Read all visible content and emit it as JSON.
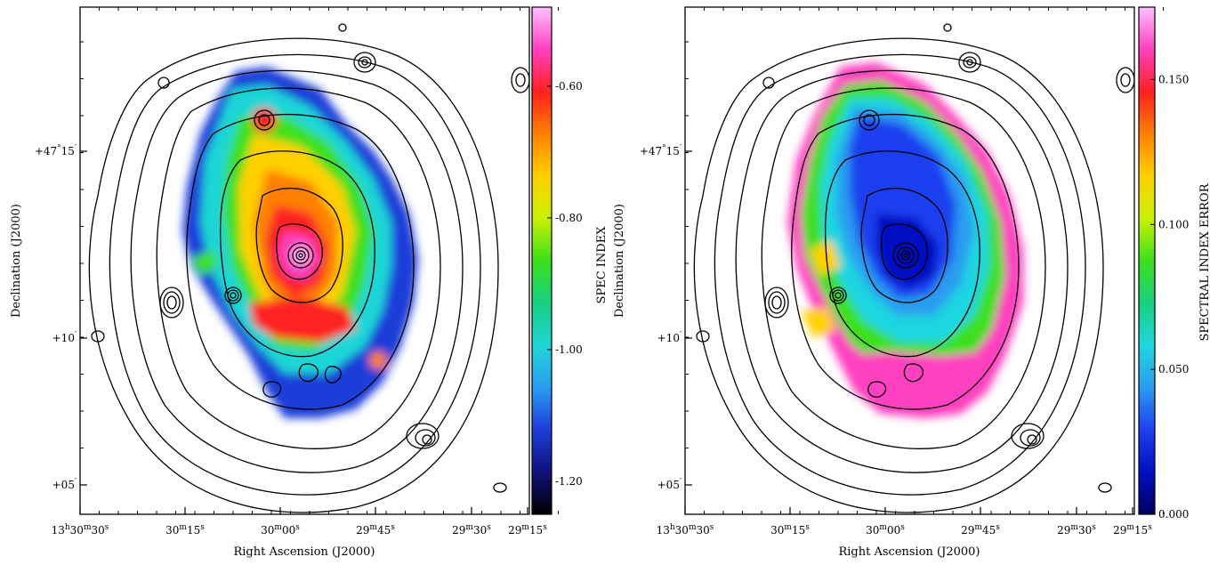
{
  "chart_data": [
    {
      "type": "heatmap",
      "description_free": true,
      "xlabel": "Right Ascension (J2000)",
      "ylabel": "Declination (J2000)",
      "x_ticks": [
        {
          "h": "13",
          "hu": "h",
          "m": "30",
          "mu": "m",
          "s": "30",
          "su": "s"
        },
        {
          "m": "30",
          "mu": "m",
          "s": "15",
          "su": "s"
        },
        {
          "m": "30",
          "mu": "m",
          "s": "00",
          "su": "s"
        },
        {
          "m": "29",
          "mu": "m",
          "s": "45",
          "su": "s"
        },
        {
          "m": "29",
          "mu": "m",
          "s": "30",
          "su": "s"
        },
        {
          "m": "29",
          "mu": "m",
          "s": "15",
          "su": "s"
        }
      ],
      "y_ticks": [
        {
          "deg": "+47",
          "du": "°",
          "min": "15",
          "mu": "′"
        },
        {
          "deg": "+10",
          "du": "",
          "min": "",
          "mu": "′"
        },
        {
          "deg": "+05",
          "du": "",
          "min": "",
          "mu": "′"
        }
      ],
      "colorbar": {
        "label": "SPEC INDEX",
        "ticks": [
          "-0.60",
          "-0.80",
          "-1.00",
          "-1.20"
        ],
        "range": [
          -1.25,
          -0.48
        ],
        "colormap": [
          "#000000",
          "#10107a",
          "#1e3ed8",
          "#2a9cf0",
          "#1fd6d6",
          "#18d080",
          "#3ce01c",
          "#c8f000",
          "#ffd000",
          "#ff8000",
          "#ff2020",
          "#ff40c0",
          "#ffc0ff"
        ]
      },
      "values_range": [
        -1.25,
        -0.55
      ]
    },
    {
      "type": "heatmap",
      "xlabel": "Right Ascension (J2000)",
      "ylabel": "Declination (J2000)",
      "x_ticks": [
        {
          "h": "13",
          "hu": "h",
          "m": "30",
          "mu": "m",
          "s": "30",
          "su": "s"
        },
        {
          "m": "30",
          "mu": "m",
          "s": "15",
          "su": "s"
        },
        {
          "m": "30",
          "mu": "m",
          "s": "00",
          "su": "s"
        },
        {
          "m": "29",
          "mu": "m",
          "s": "45",
          "su": "s"
        },
        {
          "m": "29",
          "mu": "m",
          "s": "30",
          "su": "s"
        },
        {
          "m": "29",
          "mu": "m",
          "s": "15",
          "su": "s"
        }
      ],
      "y_ticks": [
        {
          "deg": "+47",
          "du": "°",
          "min": "15",
          "mu": "′"
        },
        {
          "deg": "+10",
          "du": "",
          "min": "",
          "mu": "′"
        },
        {
          "deg": "+05",
          "du": "",
          "min": "",
          "mu": "′"
        }
      ],
      "colorbar": {
        "label": "SPECTRAL INDEX ERROR",
        "ticks": [
          "0.150",
          "0.100",
          "0.050",
          "0.000"
        ],
        "range": [
          0.0,
          0.175
        ],
        "colormap": [
          "#000060",
          "#0010c0",
          "#1e40f0",
          "#2a9cf0",
          "#1fd6e0",
          "#18d080",
          "#3ce01c",
          "#c8f000",
          "#ffd000",
          "#ff8000",
          "#ff2020",
          "#ff40c0",
          "#ffc0ff"
        ]
      }
    }
  ]
}
